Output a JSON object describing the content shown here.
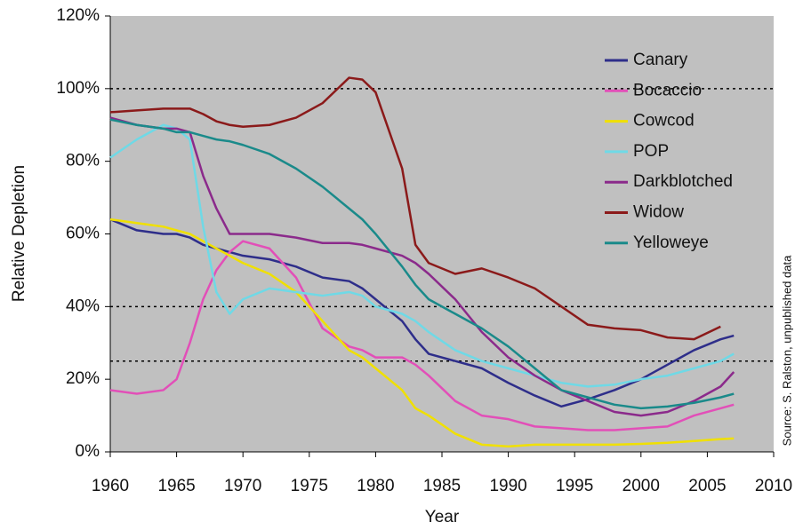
{
  "chart_data": {
    "type": "line",
    "y_label": "Relative Depletion",
    "x_label": "Year",
    "annotation": "Source: S. Ralston, unpublished data",
    "x": [
      1960,
      1962,
      1964,
      1965,
      1966,
      1967,
      1968,
      1969,
      1970,
      1972,
      1974,
      1976,
      1978,
      1979,
      1980,
      1982,
      1983,
      1984,
      1986,
      1988,
      1990,
      1992,
      1994,
      1996,
      1998,
      2000,
      2002,
      2004,
      2006,
      2007
    ],
    "series": [
      {
        "name": "Canary",
        "color": "#2e2e8a",
        "values": [
          64,
          61,
          60,
          60,
          59,
          57,
          56,
          55,
          54,
          53,
          51,
          48,
          47,
          45,
          42,
          36,
          31,
          27,
          25,
          23,
          19,
          15.5,
          12.5,
          14.5,
          17,
          20,
          24,
          28,
          31,
          32
        ]
      },
      {
        "name": "Bocaccio",
        "color": "#e24fb8",
        "values": [
          17,
          16,
          17,
          20,
          30,
          42,
          50,
          55,
          58,
          56,
          48,
          34,
          29,
          28,
          26,
          26,
          24,
          21,
          14,
          10,
          9,
          7,
          6.5,
          6,
          6,
          6.5,
          7,
          10,
          12,
          13
        ]
      },
      {
        "name": "Cowcod",
        "color": "#f0e000",
        "values": [
          64,
          63,
          62,
          61,
          60,
          58,
          56,
          54,
          52,
          49,
          44,
          36,
          28,
          26,
          23,
          17,
          12,
          10,
          5,
          2,
          1.5,
          2,
          2,
          2,
          2,
          2.2,
          2.5,
          3,
          3.5,
          3.7
        ]
      },
      {
        "name": "POP",
        "color": "#6fd9e6",
        "values": [
          81,
          86,
          90,
          89,
          86,
          62,
          44,
          38,
          42,
          45,
          44,
          43,
          44,
          43,
          40,
          38,
          36,
          33,
          28,
          25,
          23,
          21,
          19,
          18,
          18.5,
          20,
          21,
          23,
          25,
          27
        ]
      },
      {
        "name": "Darkblotched",
        "color": "#8b2a8b",
        "values": [
          92,
          90,
          89,
          89,
          88,
          76,
          67,
          60,
          60,
          60,
          59,
          57.5,
          57.5,
          57,
          56,
          54,
          52,
          49,
          42,
          33,
          26,
          21,
          17,
          14,
          11,
          10,
          11,
          14,
          18,
          22
        ]
      },
      {
        "name": "Widow",
        "color": "#8b1a1a",
        "values": [
          93.5,
          94,
          94.5,
          94.5,
          94.5,
          93,
          91,
          90,
          89.5,
          90,
          92,
          96,
          103,
          102.5,
          99,
          78,
          57,
          52,
          49,
          50.5,
          48,
          45,
          40,
          35,
          34,
          33.5,
          31.5,
          31,
          34.5,
          null
        ]
      },
      {
        "name": "Yelloweye",
        "color": "#1a8a8a",
        "values": [
          91.5,
          90,
          89,
          88,
          88,
          87,
          86,
          85.5,
          84.5,
          82,
          78,
          73,
          67,
          64,
          60,
          51,
          46,
          42,
          38,
          34,
          29,
          23,
          17,
          15,
          13,
          12,
          12.5,
          13.5,
          15,
          16
        ]
      }
    ],
    "xlim": [
      1960,
      2010
    ],
    "xticks": [
      1960,
      1965,
      1970,
      1975,
      1980,
      1985,
      1990,
      1995,
      2000,
      2005,
      2010
    ],
    "ylim": [
      0,
      120
    ],
    "yticks": [
      {
        "value": 0,
        "label": "0%"
      },
      {
        "value": 20,
        "label": "20%"
      },
      {
        "value": 40,
        "label": "40%"
      },
      {
        "value": 60,
        "label": "60%"
      },
      {
        "value": 80,
        "label": "80%"
      },
      {
        "value": 100,
        "label": "100%"
      },
      {
        "value": 120,
        "label": "120%"
      }
    ],
    "reference_lines": [
      100,
      40,
      25
    ],
    "plot_background": "#c0c0c0",
    "legend": "upper right"
  }
}
